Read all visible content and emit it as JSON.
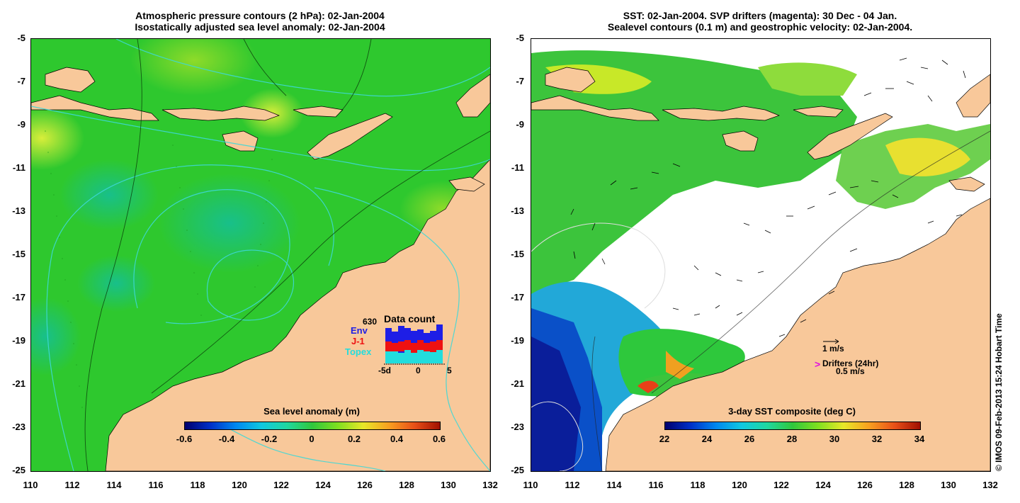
{
  "left_panel": {
    "title_line1": "Atmospheric pressure contours (2 hPa): 02-Jan-2004",
    "title_line2": "Isostatically adjusted sea level anomaly: 02-Jan-2004",
    "colorbar_title": "Sea level anomaly (m)",
    "colorbar_ticks": [
      "-0.6",
      "-0.4",
      "-0.2",
      "0",
      "0.2",
      "0.4",
      "0.6"
    ],
    "data_count": {
      "title": "Data count",
      "total": "630",
      "legend": [
        "Env",
        "J-1",
        "Topex"
      ],
      "legend_colors": [
        "#1e1ee6",
        "#ee1111",
        "#22dddd"
      ],
      "x_ticks": [
        "-5d",
        "0",
        "5"
      ]
    }
  },
  "right_panel": {
    "title_line1": "SST: 02-Jan-2004. SVP drifters (magenta): 30 Dec - 04 Jan.",
    "title_line2": "Sealevel contours (0.1 m) and geostrophic velocity: 02-Jan-2004.",
    "colorbar_title": "3-day SST composite (deg C)",
    "colorbar_ticks": [
      "22",
      "24",
      "26",
      "28",
      "30",
      "32",
      "34"
    ],
    "velocity_key": "1 m/s",
    "drifters_label": "Drifters (24hr)",
    "drifters_scale": "0.5 m/s"
  },
  "axes": {
    "y_ticks": [
      "-5",
      "-7",
      "-9",
      "-11",
      "-13",
      "-15",
      "-17",
      "-19",
      "-21",
      "-23",
      "-25"
    ],
    "x_ticks": [
      "110",
      "112",
      "114",
      "116",
      "118",
      "120",
      "122",
      "124",
      "126",
      "128",
      "130",
      "132"
    ]
  },
  "credit": "© IMOS 09-Feb-2013 15:24 Hobart Time",
  "colors": {
    "land": "#f8c89a",
    "sea_anomaly": "#2ec82e",
    "cloud": "#ffffff"
  }
}
